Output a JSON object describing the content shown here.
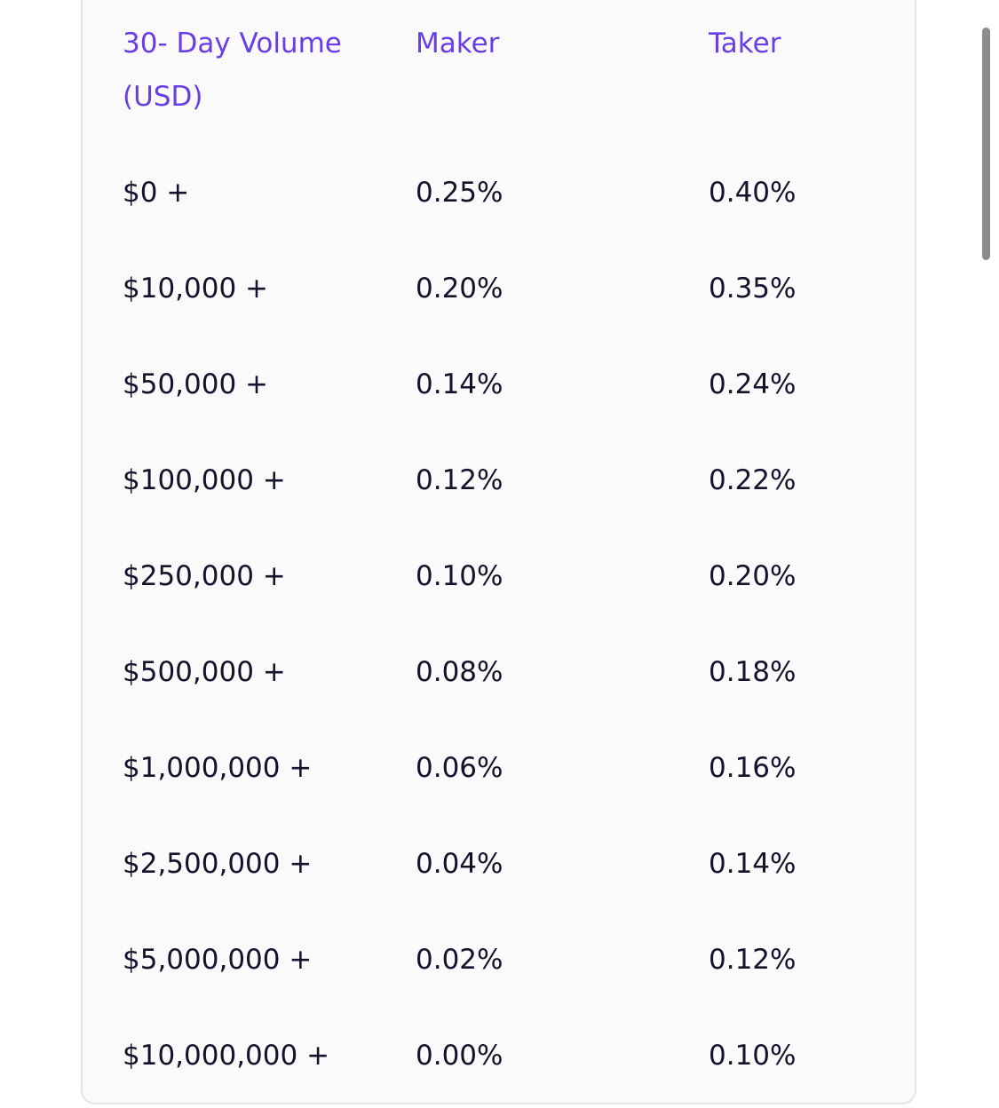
{
  "table": {
    "headers": {
      "volume": "30- Day Volume",
      "volume_unit": "(USD)",
      "maker": "Maker",
      "taker": "Taker"
    },
    "rows": [
      {
        "volume": "$0 +",
        "maker": "0.25%",
        "taker": "0.40%"
      },
      {
        "volume": "$10,000 +",
        "maker": "0.20%",
        "taker": "0.35%"
      },
      {
        "volume": "$50,000 +",
        "maker": "0.14%",
        "taker": "0.24%"
      },
      {
        "volume": "$100,000 +",
        "maker": "0.12%",
        "taker": "0.22%"
      },
      {
        "volume": "$250,000 +",
        "maker": "0.10%",
        "taker": "0.20%"
      },
      {
        "volume": "$500,000 +",
        "maker": "0.08%",
        "taker": "0.18%"
      },
      {
        "volume": "$1,000,000 +",
        "maker": "0.06%",
        "taker": "0.16%"
      },
      {
        "volume": "$2,500,000 +",
        "maker": "0.04%",
        "taker": "0.14%"
      },
      {
        "volume": "$5,000,000 +",
        "maker": "0.02%",
        "taker": "0.12%"
      },
      {
        "volume": "$10,000,000 +",
        "maker": "0.00%",
        "taker": "0.10%"
      }
    ]
  },
  "colors": {
    "header_text": "#6a3de8",
    "body_text": "#13132b",
    "card_background": "#fafafa",
    "card_border": "#e4e4e6"
  }
}
